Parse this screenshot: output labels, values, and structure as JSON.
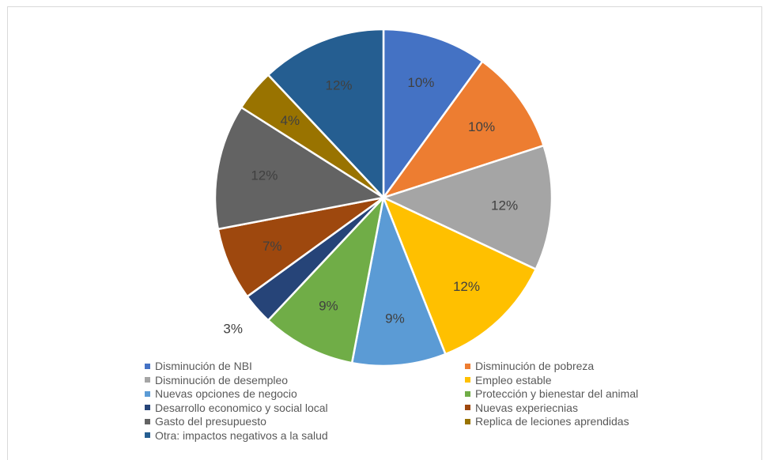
{
  "chart_data": {
    "type": "pie",
    "title": "",
    "start_angle_deg": 0,
    "direction": "clockwise",
    "slices": [
      {
        "label": "Disminución de NBI",
        "value": 10,
        "display": "10%",
        "color": "#4472c4"
      },
      {
        "label": "Disminución de pobreza",
        "value": 10,
        "display": "10%",
        "color": "#ed7d31"
      },
      {
        "label": "Disminución de desempleo",
        "value": 12,
        "display": "12%",
        "color": "#a5a5a5"
      },
      {
        "label": "Empleo estable",
        "value": 12,
        "display": "12%",
        "color": "#ffc000"
      },
      {
        "label": "Nuevas opciones de negocio",
        "value": 9,
        "display": "9%",
        "color": "#5b9bd5"
      },
      {
        "label": "Protección y bienestar del animal",
        "value": 9,
        "display": "9%",
        "color": "#70ad47"
      },
      {
        "label": "Desarrollo economico y social local",
        "value": 3,
        "display": "3%",
        "color": "#264478"
      },
      {
        "label": "Nuevas experiecnias",
        "value": 7,
        "display": "7%",
        "color": "#9e480e"
      },
      {
        "label": "Gasto del presupuesto",
        "value": 12,
        "display": "12%",
        "color": "#636363"
      },
      {
        "label": "Replica de leciones aprendidas",
        "value": 4,
        "display": "4%",
        "color": "#997300"
      },
      {
        "label": "Otra:  impactos negativos a la salud",
        "value": 12,
        "display": "12%",
        "color": "#255e91"
      }
    ],
    "legend_position": "bottom"
  }
}
